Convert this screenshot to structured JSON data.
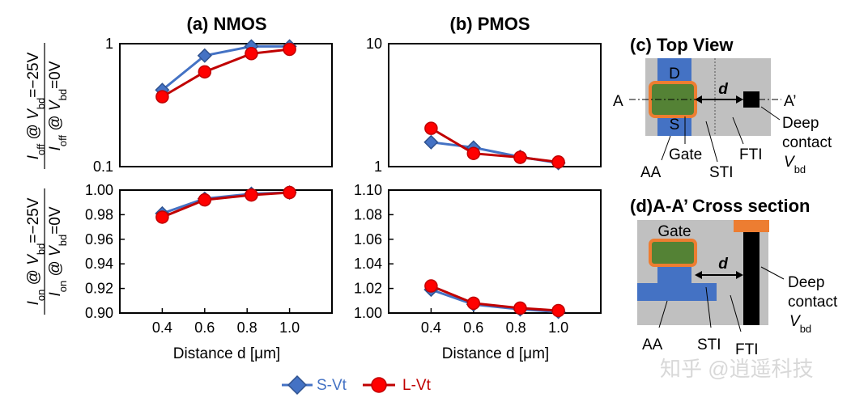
{
  "chart_data": [
    {
      "id": "nmos_ioff",
      "type": "line",
      "title": "(a) NMOS",
      "yscale": "log",
      "ylim": [
        0.1,
        1
      ],
      "yticks": [
        "1",
        "0.1"
      ],
      "ylabel": {
        "num": "I_off @ V_bd=−25V",
        "den": "I_off @ V_bd=0V"
      },
      "xlim": [
        0.2,
        1.2
      ],
      "series": [
        {
          "name": "S-Vt",
          "x": [
            0.4,
            0.6,
            0.82,
            1.0
          ],
          "values": [
            0.42,
            0.8,
            0.95,
            0.95
          ]
        },
        {
          "name": "L-Vt",
          "x": [
            0.4,
            0.6,
            0.82,
            1.0
          ],
          "values": [
            0.37,
            0.59,
            0.83,
            0.9
          ]
        }
      ]
    },
    {
      "id": "pmos_ioff",
      "type": "line",
      "title": "(b) PMOS",
      "yscale": "log",
      "ylim": [
        1,
        10
      ],
      "yticks": [
        "10",
        "1"
      ],
      "xlim": [
        0.2,
        1.2
      ],
      "series": [
        {
          "name": "S-Vt",
          "x": [
            0.4,
            0.6,
            0.82,
            1.0
          ],
          "values": [
            1.58,
            1.43,
            1.2,
            1.07
          ]
        },
        {
          "name": "L-Vt",
          "x": [
            0.4,
            0.6,
            0.82,
            1.0
          ],
          "values": [
            2.05,
            1.28,
            1.19,
            1.09
          ]
        }
      ]
    },
    {
      "id": "nmos_ion",
      "type": "line",
      "yscale": "linear",
      "ylim": [
        0.9,
        1.0
      ],
      "yticks": [
        "1.00",
        "0.98",
        "0.96",
        "0.94",
        "0.92",
        "0.90"
      ],
      "ylabel": {
        "num": "I_on @ V_bd=−25V",
        "den": "I_on @ V_bd=0V"
      },
      "xlim": [
        0.2,
        1.2
      ],
      "xticks": [
        "0.4",
        "0.6",
        "0.8",
        "1.0"
      ],
      "xlabel": "Distance d [μm]",
      "series": [
        {
          "name": "S-Vt",
          "x": [
            0.4,
            0.6,
            0.82,
            1.0
          ],
          "values": [
            0.981,
            0.993,
            0.997,
            0.998
          ]
        },
        {
          "name": "L-Vt",
          "x": [
            0.4,
            0.6,
            0.82,
            1.0
          ],
          "values": [
            0.978,
            0.992,
            0.996,
            0.998
          ]
        }
      ]
    },
    {
      "id": "pmos_ion",
      "type": "line",
      "yscale": "linear",
      "ylim": [
        1.0,
        1.1
      ],
      "yticks": [
        "1.10",
        "1.08",
        "1.06",
        "1.04",
        "1.02",
        "1.00"
      ],
      "xlim": [
        0.2,
        1.2
      ],
      "xticks": [
        "0.4",
        "0.6",
        "0.8",
        "1.0"
      ],
      "xlabel": "Distance d [μm]",
      "series": [
        {
          "name": "S-Vt",
          "x": [
            0.4,
            0.6,
            0.82,
            1.0
          ],
          "values": [
            1.019,
            1.007,
            1.003,
            1.001
          ]
        },
        {
          "name": "L-Vt",
          "x": [
            0.4,
            0.6,
            0.82,
            1.0
          ],
          "values": [
            1.022,
            1.008,
            1.004,
            1.002
          ]
        }
      ]
    }
  ],
  "legend": {
    "items": [
      {
        "name": "S-Vt",
        "label": "S-Vt",
        "color": "#4472c4",
        "marker": "diamond"
      },
      {
        "name": "L-Vt",
        "label": "L-Vt",
        "color": "#c00000",
        "marker": "circle"
      }
    ]
  },
  "colors": {
    "svt_line": "#4472c4",
    "svt_marker": "#4472c4",
    "lvt_line": "#c00000",
    "lvt_marker": "#ff0000",
    "substrate": "#c0c0c0",
    "active": "#4472c4",
    "gate": "#548235",
    "gate_border": "#ed7d31",
    "contact": "#000000"
  },
  "top_view": {
    "title": "(c) Top View",
    "label_d_region": "D",
    "label_s_region": "S",
    "label_distance": "d",
    "label_a": "A",
    "label_a_prime": "A’",
    "label_deep": "Deep",
    "label_contact": "contact",
    "label_vbd_v": "V",
    "label_vbd_sub": "bd",
    "label_aa": "AA",
    "label_gate": "Gate",
    "label_sti": "STI",
    "label_fti": "FTI"
  },
  "cross_section": {
    "title": "(d)A-A’ Cross section",
    "label_gate": "Gate",
    "label_distance": "d",
    "label_deep": "Deep",
    "label_contact": "contact",
    "label_vbd_v": "V",
    "label_vbd_sub": "bd",
    "label_aa": "AA",
    "label_sti": "STI",
    "label_fti": "FTI"
  },
  "watermark": "知乎 @逍遥科技"
}
